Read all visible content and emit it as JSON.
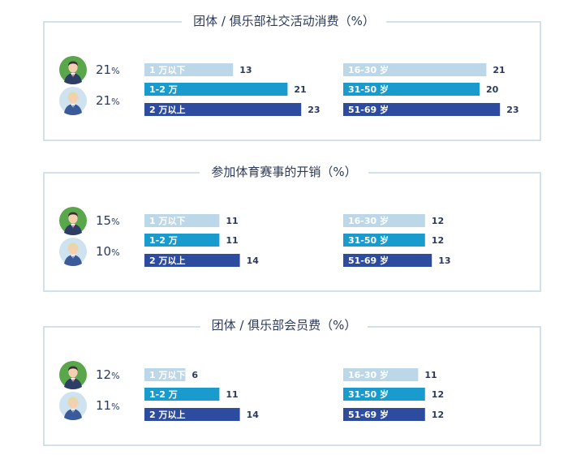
{
  "colors": {
    "light": "#bcd8e8",
    "mid": "#199ccd",
    "dark": "#2e4c9f",
    "border": "#d3e2ea",
    "text": "#2b3a5c",
    "male_ring": "#5aa64a",
    "female_ring": "#cfe2ef"
  },
  "pct_unit": "%",
  "chart_data": [
    {
      "type": "bar",
      "title": "团体 / 俱乐部社交活动消费（%）",
      "gender": [
        {
          "icon": "male-avatar-icon",
          "value": 21
        },
        {
          "icon": "female-avatar-icon",
          "value": 21
        }
      ],
      "income": {
        "categories": [
          "1 万以下",
          "1-2 万",
          "2 万以上"
        ],
        "values": [
          13,
          21,
          23
        ]
      },
      "age": {
        "categories": [
          "16-30 岁",
          "31-50 岁",
          "51-69 岁"
        ],
        "values": [
          21,
          20,
          23
        ]
      }
    },
    {
      "type": "bar",
      "title": "参加体育赛事的开销（%）",
      "gender": [
        {
          "icon": "male-avatar-icon",
          "value": 15
        },
        {
          "icon": "female-avatar-icon",
          "value": 10
        }
      ],
      "income": {
        "categories": [
          "1 万以下",
          "1-2 万",
          "2 万以上"
        ],
        "values": [
          11,
          11,
          14
        ]
      },
      "age": {
        "categories": [
          "16-30 岁",
          "31-50 岁",
          "51-69 岁"
        ],
        "values": [
          12,
          12,
          13
        ]
      }
    },
    {
      "type": "bar",
      "title": "团体 / 俱乐部会员费（%）",
      "gender": [
        {
          "icon": "male-avatar-icon",
          "value": 12
        },
        {
          "icon": "female-avatar-icon",
          "value": 11
        }
      ],
      "income": {
        "categories": [
          "1 万以下",
          "1-2 万",
          "2 万以上"
        ],
        "values": [
          6,
          11,
          14
        ]
      },
      "age": {
        "categories": [
          "16-30 岁",
          "31-50 岁",
          "51-69 岁"
        ],
        "values": [
          11,
          12,
          12
        ]
      }
    }
  ]
}
